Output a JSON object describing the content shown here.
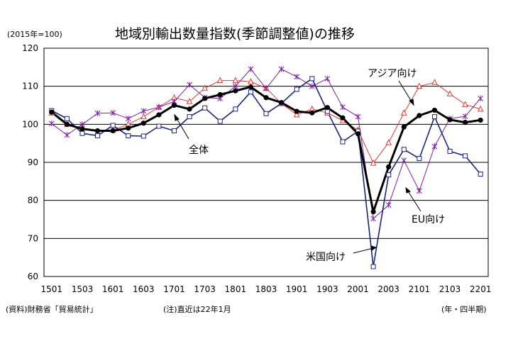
{
  "chart_data": {
    "type": "line",
    "title": "地域別輸出数量指数(季節調整値)の推移",
    "unit_note": "(2015年=100)",
    "xlabel_note": "(年・四半期)",
    "source_note": "(資料)財務省「貿易統計」",
    "remark_note": "(注)直近は22年1月",
    "ylim": [
      60,
      120
    ],
    "yticks": [
      "60",
      "70",
      "80",
      "90",
      "100",
      "110",
      "120"
    ],
    "xticks": [
      "1501",
      "1503",
      "1601",
      "1603",
      "1701",
      "1703",
      "1801",
      "1803",
      "1901",
      "1903",
      "2001",
      "2003",
      "2101",
      "2103",
      "2201"
    ],
    "x": [
      "1501",
      "1502",
      "1503",
      "1504",
      "1601",
      "1602",
      "1603",
      "1604",
      "1701",
      "1702",
      "1703",
      "1704",
      "1801",
      "1802",
      "1803",
      "1804",
      "1901",
      "1902",
      "1903",
      "1904",
      "2001",
      "2002",
      "2003",
      "2004",
      "2101",
      "2102",
      "2103",
      "2104",
      "2201"
    ],
    "grid": "horizontal",
    "series": [
      {
        "name": "全体",
        "color": "#000000",
        "marker": "filled-circle",
        "values": [
          103.2,
          100.0,
          98.8,
          98.3,
          98.3,
          99.0,
          100.3,
          102.5,
          105.0,
          104.0,
          106.8,
          107.8,
          108.8,
          109.8,
          107.0,
          105.7,
          103.4,
          103.0,
          104.4,
          101.7,
          97.5,
          77.0,
          88.8,
          99.3,
          102.3,
          103.7,
          101.2,
          100.5,
          101.1
        ]
      },
      {
        "name": "米国向け",
        "color": "#1a237e",
        "marker": "open-square",
        "values": [
          103.6,
          101.5,
          97.6,
          97.0,
          99.7,
          97.0,
          96.9,
          99.5,
          98.3,
          102.0,
          104.3,
          100.8,
          104.0,
          108.5,
          102.8,
          105.5,
          109.2,
          112.0,
          103.4,
          95.4,
          98.2,
          62.6,
          86.7,
          93.4,
          91.0,
          102.0,
          92.9,
          91.7,
          86.9
        ]
      },
      {
        "name": "アジア向け",
        "color": "#e53935",
        "marker": "open-triangle",
        "values": [
          103.0,
          100.0,
          99.0,
          98.0,
          98.5,
          100.0,
          102.0,
          104.5,
          107.0,
          106.0,
          109.5,
          111.5,
          111.5,
          111.2,
          109.5,
          105.5,
          102.5,
          104.0,
          103.0,
          101.0,
          98.5,
          89.8,
          95.2,
          103.0,
          110.0,
          111.0,
          108.0,
          105.2,
          104.0
        ]
      },
      {
        "name": "EU向け",
        "color": "#7b1fa2",
        "marker": "asterisk",
        "values": [
          100.2,
          97.2,
          100.0,
          102.9,
          103.0,
          101.5,
          103.5,
          104.5,
          106.0,
          110.4,
          107.0,
          106.8,
          110.0,
          114.5,
          109.4,
          114.5,
          112.5,
          110.0,
          112.0,
          104.5,
          102.0,
          75.2,
          78.8,
          90.5,
          82.5,
          94.2,
          101.5,
          102.1,
          106.8
        ]
      }
    ]
  },
  "annotations": {
    "asia": "アジア向け",
    "total": "全体",
    "eu": "EU向け",
    "us": "米国向け"
  }
}
